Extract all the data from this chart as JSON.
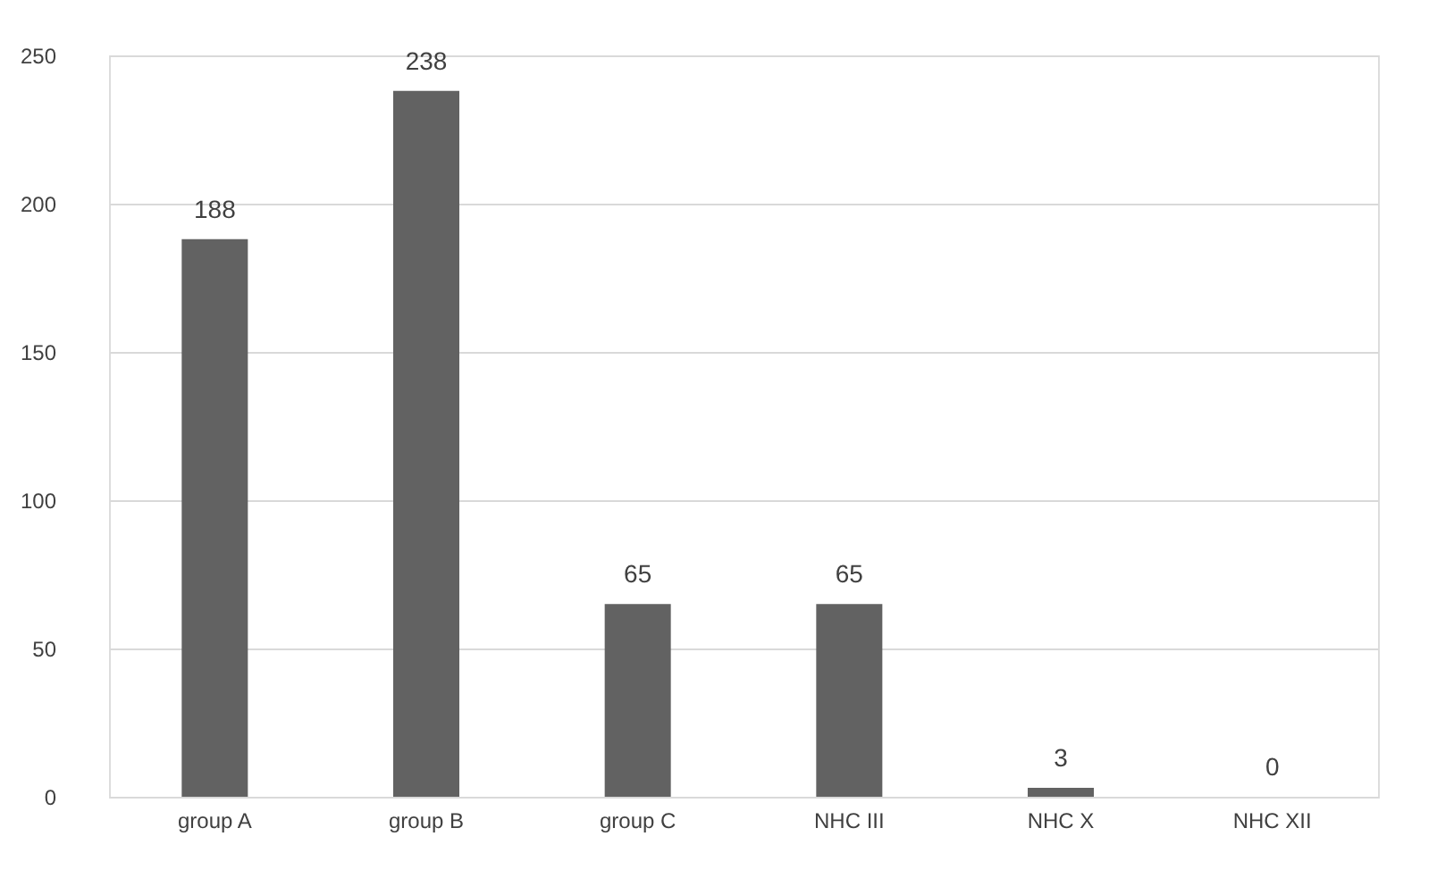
{
  "chart_data": {
    "type": "bar",
    "categories": [
      "group A",
      "group B",
      "group C",
      "NHC III",
      "NHC X",
      "NHC XII"
    ],
    "values": [
      188,
      238,
      65,
      65,
      3,
      0
    ],
    "color": "#626262",
    "ylim": [
      0,
      250
    ],
    "yticks": [
      0,
      50,
      100,
      150,
      200,
      250
    ],
    "grid": "y",
    "data_labels": true
  }
}
